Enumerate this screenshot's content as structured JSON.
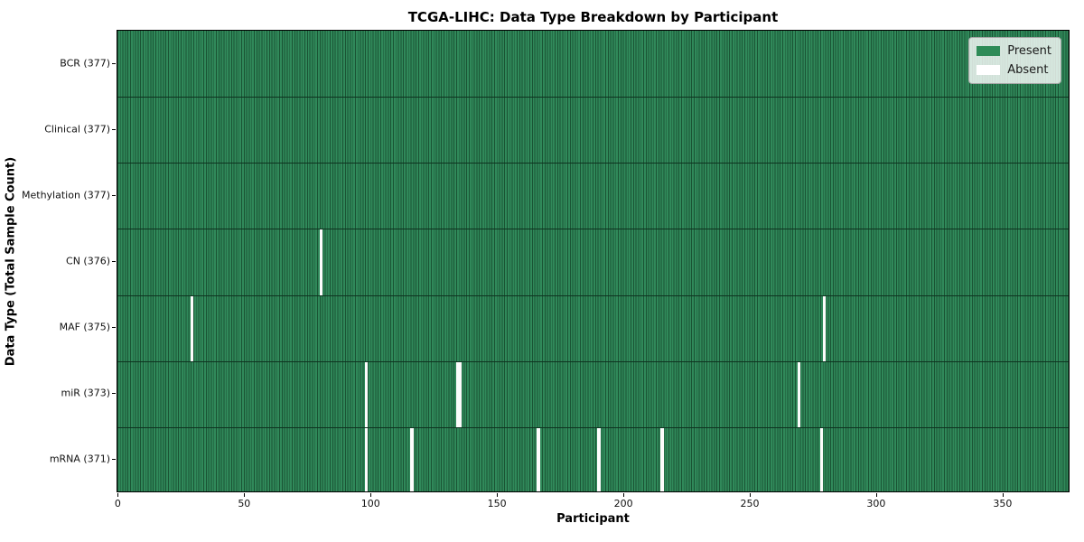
{
  "chart_data": {
    "type": "heatmap",
    "title": "TCGA-LIHC: Data Type Breakdown by Participant",
    "xlabel": "Participant",
    "ylabel": "Data Type (Total Sample Count)",
    "n_participants": 377,
    "x_axis_range": [
      -0.5,
      376.5
    ],
    "x_ticks": [
      0,
      50,
      100,
      150,
      200,
      250,
      300,
      350
    ],
    "grid": false,
    "legend": {
      "position": "upper right",
      "entries": [
        {
          "label": "Present",
          "color": "#2e8b57"
        },
        {
          "label": "Absent",
          "color": "#ffffff"
        }
      ]
    },
    "colors": {
      "present_fill": "#2e8b57",
      "absent_fill": "#ffffff",
      "cell_edge": "#1a5434",
      "row_divider": "#0e3320"
    },
    "rows": [
      {
        "label": "BCR (377)",
        "data_type": "BCR",
        "total_samples": 377,
        "absent_participant_indices": []
      },
      {
        "label": "Clinical (377)",
        "data_type": "Clinical",
        "total_samples": 377,
        "absent_participant_indices": []
      },
      {
        "label": "Methylation (377)",
        "data_type": "Methylation",
        "total_samples": 377,
        "absent_participant_indices": []
      },
      {
        "label": "CN (376)",
        "data_type": "CN",
        "total_samples": 376,
        "absent_participant_indices": [
          80
        ]
      },
      {
        "label": "MAF (375)",
        "data_type": "MAF",
        "total_samples": 375,
        "absent_participant_indices": [
          29,
          279
        ]
      },
      {
        "label": "miR (373)",
        "data_type": "miR",
        "total_samples": 373,
        "absent_participant_indices": [
          98,
          134,
          135,
          269
        ]
      },
      {
        "label": "mRNA (371)",
        "data_type": "mRNA",
        "total_samples": 371,
        "absent_participant_indices": [
          98,
          116,
          166,
          190,
          215,
          278
        ]
      }
    ]
  }
}
